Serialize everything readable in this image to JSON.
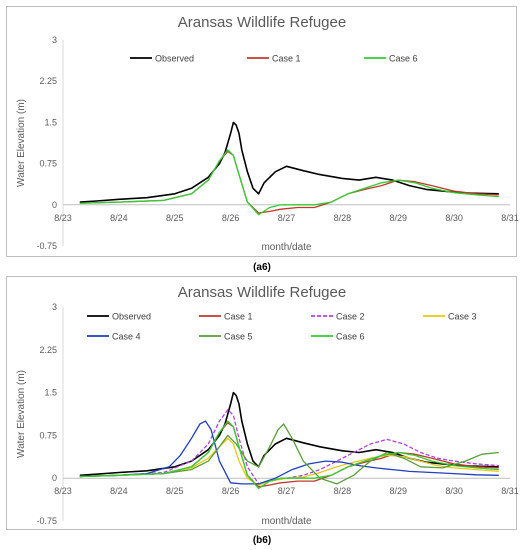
{
  "chart_data": [
    {
      "type": "line",
      "panel_label": "(a6)",
      "title": "Aransas Wildlife Refugee",
      "xlabel": "month/date",
      "ylabel": "Water Elevation (m)",
      "ylim": [
        -0.75,
        3
      ],
      "yticks": [
        "-0.75",
        "0",
        "0.75",
        "1.5",
        "2.25",
        "3"
      ],
      "xlim": [
        0,
        8
      ],
      "xticks": [
        "8/23",
        "8/24",
        "8/25",
        "8/26",
        "8/27",
        "8/28",
        "8/29",
        "8/30",
        "8/31"
      ],
      "grid": false,
      "legend_position": "top",
      "series": [
        {
          "name": "Observed",
          "color": "#000000",
          "dash": "",
          "x": [
            0.3,
            0.6,
            1.0,
            1.5,
            2.0,
            2.3,
            2.6,
            2.8,
            2.9,
            3.0,
            3.05,
            3.1,
            3.15,
            3.2,
            3.3,
            3.4,
            3.5,
            3.6,
            3.8,
            4.0,
            4.3,
            4.6,
            5.0,
            5.3,
            5.6,
            5.9,
            6.2,
            6.5,
            6.8,
            7.1,
            7.4,
            7.8
          ],
          "y": [
            0.05,
            0.07,
            0.1,
            0.13,
            0.2,
            0.3,
            0.5,
            0.75,
            0.95,
            1.3,
            1.5,
            1.45,
            1.3,
            1.0,
            0.6,
            0.3,
            0.2,
            0.4,
            0.6,
            0.7,
            0.62,
            0.55,
            0.48,
            0.45,
            0.5,
            0.45,
            0.35,
            0.28,
            0.25,
            0.22,
            0.21,
            0.2
          ]
        },
        {
          "name": "Case 1",
          "color": "#c0392b",
          "dash": "",
          "x": [
            0.3,
            1.0,
            1.8,
            2.3,
            2.6,
            2.8,
            2.95,
            3.05,
            3.15,
            3.3,
            3.5,
            3.7,
            3.9,
            4.2,
            4.5,
            4.8,
            5.1,
            5.4,
            5.7,
            6.0,
            6.3,
            6.6,
            7.0,
            7.4,
            7.8
          ],
          "y": [
            0.03,
            0.05,
            0.08,
            0.2,
            0.45,
            0.8,
            0.97,
            0.9,
            0.55,
            0.05,
            -0.15,
            -0.12,
            -0.08,
            -0.05,
            -0.05,
            0.05,
            0.2,
            0.28,
            0.35,
            0.45,
            0.42,
            0.35,
            0.25,
            0.2,
            0.18
          ]
        },
        {
          "name": "Case 6",
          "color": "#33cc33",
          "dash": "",
          "x": [
            0.3,
            1.0,
            1.8,
            2.3,
            2.6,
            2.8,
            2.95,
            3.05,
            3.15,
            3.3,
            3.5,
            3.7,
            3.9,
            4.2,
            4.5,
            4.8,
            5.1,
            5.4,
            5.7,
            6.0,
            6.3,
            6.6,
            7.0,
            7.4,
            7.8
          ],
          "y": [
            0.03,
            0.05,
            0.08,
            0.2,
            0.45,
            0.8,
            1.0,
            0.9,
            0.55,
            0.05,
            -0.18,
            -0.05,
            0.0,
            0.0,
            0.0,
            0.05,
            0.2,
            0.3,
            0.4,
            0.45,
            0.4,
            0.3,
            0.22,
            0.18,
            0.15
          ]
        }
      ]
    },
    {
      "type": "line",
      "panel_label": "(b6)",
      "title": "Aransas Wildlife Refugee",
      "xlabel": "month/date",
      "ylabel": "Water Elevation (m)",
      "ylim": [
        -0.75,
        3
      ],
      "yticks": [
        "-0.75",
        "0",
        "0.75",
        "1.5",
        "2.25",
        "3"
      ],
      "xlim": [
        0,
        8
      ],
      "xticks": [
        "8/23",
        "8/24",
        "8/25",
        "8/26",
        "8/27",
        "8/28",
        "8/29",
        "8/30",
        "8/31"
      ],
      "grid": false,
      "legend_position": "top",
      "series": [
        {
          "name": "Observed",
          "color": "#000000",
          "dash": "",
          "x": [
            0.3,
            0.6,
            1.0,
            1.5,
            2.0,
            2.3,
            2.6,
            2.8,
            2.9,
            3.0,
            3.05,
            3.1,
            3.15,
            3.2,
            3.3,
            3.4,
            3.5,
            3.6,
            3.8,
            4.0,
            4.3,
            4.6,
            5.0,
            5.3,
            5.6,
            5.9,
            6.2,
            6.5,
            6.8,
            7.1,
            7.4,
            7.8
          ],
          "y": [
            0.05,
            0.07,
            0.1,
            0.13,
            0.2,
            0.3,
            0.5,
            0.75,
            0.95,
            1.3,
            1.5,
            1.45,
            1.3,
            1.0,
            0.6,
            0.3,
            0.2,
            0.4,
            0.6,
            0.7,
            0.62,
            0.55,
            0.48,
            0.45,
            0.5,
            0.45,
            0.35,
            0.28,
            0.25,
            0.22,
            0.21,
            0.2
          ]
        },
        {
          "name": "Case 1",
          "color": "#c0392b",
          "dash": "",
          "x": [
            0.3,
            1.0,
            1.8,
            2.3,
            2.6,
            2.8,
            2.95,
            3.05,
            3.15,
            3.3,
            3.5,
            3.7,
            3.9,
            4.2,
            4.5,
            4.8,
            5.1,
            5.4,
            5.7,
            6.0,
            6.3,
            6.6,
            7.0,
            7.4,
            7.8
          ],
          "y": [
            0.03,
            0.05,
            0.08,
            0.2,
            0.45,
            0.8,
            0.97,
            0.9,
            0.55,
            0.05,
            -0.15,
            -0.12,
            -0.08,
            -0.05,
            -0.05,
            0.05,
            0.2,
            0.28,
            0.35,
            0.45,
            0.42,
            0.35,
            0.25,
            0.2,
            0.18
          ]
        },
        {
          "name": "Case 2",
          "color": "#b040e0",
          "dash": "4,2",
          "x": [
            0.3,
            1.0,
            1.8,
            2.3,
            2.6,
            2.8,
            2.95,
            3.05,
            3.15,
            3.3,
            3.5,
            3.7,
            4.0,
            4.3,
            4.6,
            4.9,
            5.2,
            5.5,
            5.8,
            6.1,
            6.4,
            6.7,
            7.0,
            7.4,
            7.8
          ],
          "y": [
            0.03,
            0.05,
            0.1,
            0.3,
            0.6,
            1.0,
            1.2,
            1.1,
            0.7,
            0.2,
            -0.1,
            -0.05,
            0.0,
            0.05,
            0.15,
            0.3,
            0.45,
            0.6,
            0.68,
            0.6,
            0.45,
            0.35,
            0.3,
            0.25,
            0.22
          ]
        },
        {
          "name": "Case 3",
          "color": "#e6c619",
          "dash": "",
          "x": [
            0.3,
            1.0,
            1.8,
            2.3,
            2.6,
            2.8,
            2.95,
            3.05,
            3.15,
            3.3,
            3.5,
            3.7,
            4.0,
            4.3,
            4.6,
            4.9,
            5.2,
            5.5,
            5.8,
            6.1,
            6.4,
            6.7,
            7.0,
            7.4,
            7.8
          ],
          "y": [
            0.03,
            0.05,
            0.08,
            0.18,
            0.35,
            0.55,
            0.7,
            0.6,
            0.3,
            0.0,
            -0.12,
            -0.05,
            0.0,
            0.02,
            0.1,
            0.2,
            0.28,
            0.35,
            0.4,
            0.38,
            0.3,
            0.22,
            0.18,
            0.15,
            0.12
          ]
        },
        {
          "name": "Case 4",
          "color": "#1f3fbf",
          "dash": "",
          "x": [
            0.3,
            1.0,
            1.5,
            1.9,
            2.1,
            2.3,
            2.45,
            2.55,
            2.65,
            2.8,
            3.0,
            3.2,
            3.5,
            3.8,
            4.1,
            4.4,
            4.7,
            5.0,
            5.3,
            5.6,
            5.9,
            6.2,
            6.6,
            7.0,
            7.4,
            7.8
          ],
          "y": [
            0.03,
            0.05,
            0.08,
            0.2,
            0.4,
            0.7,
            0.95,
            1.0,
            0.85,
            0.3,
            -0.08,
            -0.1,
            -0.1,
            0.0,
            0.15,
            0.25,
            0.3,
            0.28,
            0.22,
            0.18,
            0.15,
            0.12,
            0.1,
            0.08,
            0.06,
            0.05
          ]
        },
        {
          "name": "Case 5",
          "color": "#5a9e3a",
          "dash": "",
          "x": [
            0.3,
            1.0,
            1.8,
            2.3,
            2.6,
            2.8,
            2.95,
            3.1,
            3.3,
            3.5,
            3.7,
            3.85,
            3.95,
            4.1,
            4.3,
            4.6,
            4.9,
            5.2,
            5.5,
            5.8,
            6.1,
            6.4,
            6.8,
            7.2,
            7.5,
            7.8
          ],
          "y": [
            0.03,
            0.05,
            0.08,
            0.15,
            0.3,
            0.55,
            0.75,
            0.6,
            0.3,
            0.2,
            0.55,
            0.85,
            0.95,
            0.7,
            0.3,
            0.0,
            -0.1,
            0.05,
            0.3,
            0.45,
            0.35,
            0.2,
            0.18,
            0.3,
            0.42,
            0.45
          ]
        },
        {
          "name": "Case 6",
          "color": "#33cc33",
          "dash": "",
          "x": [
            0.3,
            1.0,
            1.8,
            2.3,
            2.6,
            2.8,
            2.95,
            3.05,
            3.15,
            3.3,
            3.5,
            3.7,
            3.9,
            4.2,
            4.5,
            4.8,
            5.1,
            5.4,
            5.7,
            6.0,
            6.3,
            6.6,
            7.0,
            7.4,
            7.8
          ],
          "y": [
            0.03,
            0.05,
            0.08,
            0.2,
            0.45,
            0.8,
            1.0,
            0.9,
            0.55,
            0.05,
            -0.18,
            -0.05,
            0.0,
            0.0,
            0.0,
            0.05,
            0.2,
            0.3,
            0.4,
            0.45,
            0.4,
            0.3,
            0.22,
            0.18,
            0.15
          ]
        }
      ]
    }
  ]
}
